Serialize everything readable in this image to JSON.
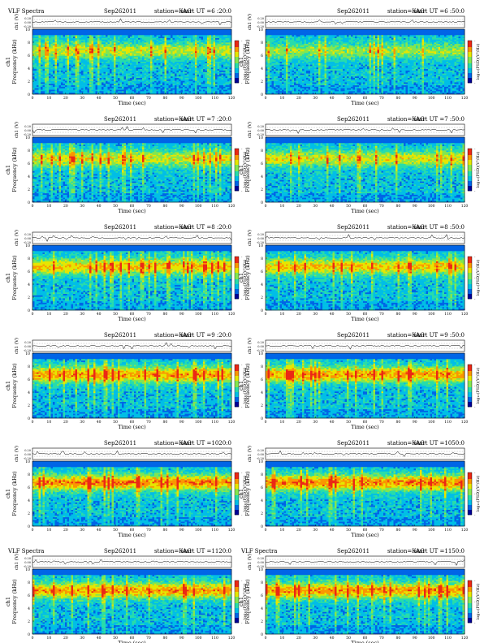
{
  "chart_data": [
    {
      "type": "heatmap",
      "title_left": "VLF Spectra",
      "date": "Sep262011",
      "station": "station=KAG",
      "start": "start  UT =6 :20:0",
      "seed": 1,
      "intensity": 0.55
    },
    {
      "type": "heatmap",
      "title_left": "",
      "date": "Sep262011",
      "station": "station=KAG",
      "start": "start  UT =6 :50:0",
      "seed": 2,
      "intensity": 0.45
    },
    {
      "type": "heatmap",
      "title_left": "",
      "date": "Sep262011",
      "station": "station=KAG",
      "start": "start  UT =7 :20:0",
      "seed": 3,
      "intensity": 0.6
    },
    {
      "type": "heatmap",
      "title_left": "",
      "date": "Sep262011",
      "station": "station=KAG",
      "start": "start  UT =7 :50:0",
      "seed": 4,
      "intensity": 0.6
    },
    {
      "type": "heatmap",
      "title_left": "",
      "date": "Sep262011",
      "station": "station=KAG",
      "start": "start  UT =8 :20:0",
      "seed": 5,
      "intensity": 0.7
    },
    {
      "type": "heatmap",
      "title_left": "",
      "date": "Sep262011",
      "station": "station=KAG",
      "start": "start  UT =8 :50:0",
      "seed": 6,
      "intensity": 0.7
    },
    {
      "type": "heatmap",
      "title_left": "",
      "date": "Sep262011",
      "station": "station=KAG",
      "start": "start  UT =9 :20:0",
      "seed": 7,
      "intensity": 0.8
    },
    {
      "type": "heatmap",
      "title_left": "",
      "date": "Sep262011",
      "station": "station=KAG",
      "start": "start  UT =9 :50:0",
      "seed": 8,
      "intensity": 0.8
    },
    {
      "type": "heatmap",
      "title_left": "",
      "date": "Sep262011",
      "station": "station=KAG",
      "start": "start  UT =1020:0",
      "seed": 9,
      "intensity": 0.85
    },
    {
      "type": "heatmap",
      "title_left": "",
      "date": "Sep262011",
      "station": "station=KAG",
      "start": "start  UT =1050:0",
      "seed": 10,
      "intensity": 0.85
    },
    {
      "type": "heatmap",
      "title_left": "VLF Spectra",
      "date": "Sep262011",
      "station": "station=KAG",
      "start": "start  UT =1120:0",
      "seed": 11,
      "intensity": 0.8
    },
    {
      "type": "heatmap",
      "title_left": "VLF Spectra",
      "date": "Sep262011",
      "station": "station=KAG",
      "start": "start  UT =1150:0",
      "seed": 12,
      "intensity": 0.8
    }
  ],
  "axes": {
    "xlabel": "Time  (sec)",
    "ylabel_spec": "Frequency  (kHz)",
    "ylabel_ch": "ch1",
    "ylabel_top": "ch1 (V)",
    "colorbar_label": "log₁₀(PSD)(V²/Hz)",
    "xlim_left": [
      0,
      120
    ],
    "xlim_right": [
      0,
      120
    ],
    "xticks_left": [
      "0",
      "10",
      "20",
      "30",
      "40",
      "50",
      "60",
      "70",
      "80",
      "90",
      "100",
      "110",
      "120"
    ],
    "xticks_right": [
      "0",
      "10",
      "20",
      "30",
      "40",
      "50",
      "60",
      "70",
      "80",
      "90",
      "100",
      "110",
      "120"
    ],
    "ylim": [
      0,
      10
    ],
    "yticks": [
      "0",
      "2",
      "4",
      "6",
      "8",
      "10"
    ],
    "wave_ticks": [
      "0.20",
      "0.00",
      "-0.20"
    ],
    "colorbar_ticks": [
      "-",
      "-",
      "-"
    ]
  }
}
